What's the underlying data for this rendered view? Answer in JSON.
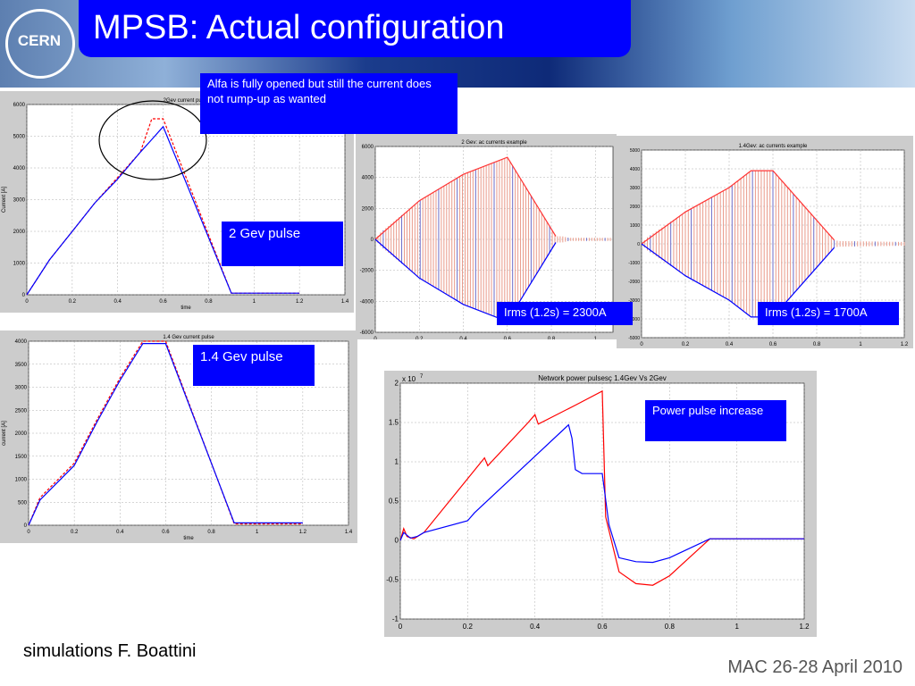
{
  "slide": {
    "title": "MPSB: Actual configuration",
    "logo": "CERN",
    "footer_left": "simulations F. Boattini",
    "footer_right": "MAC 26-28 April 2010"
  },
  "notes": {
    "alfa": "Alfa is fully opened but still the current does not rump-up as wanted",
    "gev2": "2 Gev pulse",
    "gev14": "1.4 Gev pulse",
    "irms2": "Irms (1.2s) = 2300A",
    "irms14": "Irms (1.2s) = 1700A",
    "power": "Power pulse increase"
  },
  "chart_data": [
    {
      "id": "chart1",
      "type": "line",
      "title": "2Gev current pulse",
      "xlabel": "time",
      "ylabel": "Current [A]",
      "xlim": [
        0,
        1.4
      ],
      "ylim": [
        0,
        6000
      ],
      "xticks": [
        "0",
        "0.2",
        "0.4",
        "0.6",
        "0.8",
        "1",
        "1.2",
        "1.4"
      ],
      "yticks": [
        "0",
        "1000",
        "2000",
        "3000",
        "4000",
        "5000",
        "6000"
      ],
      "grid": true,
      "series": [
        {
          "color": "#ff0000",
          "dash": "3,2",
          "x": [
            0,
            0.05,
            0.1,
            0.2,
            0.3,
            0.4,
            0.5,
            0.55,
            0.6,
            0.9,
            1.2
          ],
          "y": [
            0,
            550,
            1100,
            2000,
            2900,
            3700,
            4500,
            5550,
            5550,
            50,
            50
          ]
        },
        {
          "color": "#0000ff",
          "dash": "",
          "x": [
            0,
            0.05,
            0.1,
            0.2,
            0.3,
            0.4,
            0.5,
            0.55,
            0.6,
            0.9,
            1.2
          ],
          "y": [
            0,
            550,
            1100,
            2000,
            2900,
            3650,
            4500,
            4900,
            5300,
            50,
            50
          ]
        }
      ]
    },
    {
      "id": "chart2",
      "type": "line",
      "title": "1.4 Gev current pulse",
      "xlabel": "time",
      "ylabel": "current [A]",
      "xlim": [
        0,
        1.4
      ],
      "ylim": [
        0,
        4000
      ],
      "xticks": [
        "0",
        "0.2",
        "0.4",
        "0.6",
        "0.8",
        "1",
        "1.2",
        "1.4"
      ],
      "yticks": [
        "0",
        "500",
        "1000",
        "1500",
        "2000",
        "2500",
        "3000",
        "3500",
        "4000"
      ],
      "grid": true,
      "series": [
        {
          "color": "#ff0000",
          "dash": "3,2",
          "x": [
            0,
            0.05,
            0.2,
            0.3,
            0.4,
            0.5,
            0.6,
            0.9,
            1.2
          ],
          "y": [
            0,
            600,
            1350,
            2300,
            3200,
            4000,
            4000,
            30,
            30
          ]
        },
        {
          "color": "#0000ff",
          "dash": "",
          "x": [
            0,
            0.05,
            0.2,
            0.3,
            0.4,
            0.5,
            0.6,
            0.9,
            1.2
          ],
          "y": [
            0,
            550,
            1300,
            2250,
            3150,
            3950,
            3950,
            50,
            50
          ]
        }
      ]
    },
    {
      "id": "chart3",
      "type": "line",
      "title": "2 Gev: ac currents example",
      "xlim": [
        0,
        1.08
      ],
      "ylim": [
        -6000,
        6000
      ],
      "xticks": [
        "0",
        "0.2",
        "0.4",
        "0.6",
        "0.8",
        "1"
      ],
      "yticks": [
        "-6000",
        "-4000",
        "-2000",
        "0",
        "2000",
        "4000",
        "6000"
      ],
      "grid": true,
      "envelope": {
        "x": [
          0,
          0.02,
          0.2,
          0.4,
          0.6,
          0.82,
          0.85,
          0.88,
          1.08
        ],
        "amp": [
          0,
          400,
          2500,
          4200,
          5300,
          200,
          200,
          100,
          100
        ]
      },
      "series": [
        {
          "color": "#ff3333",
          "dash": "",
          "x": [
            0,
            0.2,
            0.4,
            0.6,
            0.82
          ],
          "y": [
            0,
            2500,
            4200,
            5300,
            200
          ]
        },
        {
          "color": "#0000ff",
          "dash": "",
          "x": [
            0,
            0.2,
            0.4,
            0.6,
            0.82
          ],
          "y": [
            0,
            -2500,
            -4200,
            -5300,
            -200
          ]
        }
      ]
    },
    {
      "id": "chart4",
      "type": "line",
      "title": "1.4Gev: ac currents example",
      "xlim": [
        0,
        1.2
      ],
      "ylim": [
        -5000,
        5000
      ],
      "xticks": [
        "0",
        "0.2",
        "0.4",
        "0.6",
        "0.8",
        "1",
        "1.2"
      ],
      "yticks": [
        "-5000",
        "-4000",
        "-3000",
        "-2000",
        "-1000",
        "0",
        "1000",
        "2000",
        "3000",
        "4000",
        "5000"
      ],
      "grid": true,
      "envelope": {
        "x": [
          0,
          0.02,
          0.2,
          0.4,
          0.5,
          0.6,
          0.88,
          0.9,
          1.2
        ],
        "amp": [
          0,
          300,
          1700,
          3000,
          3900,
          3900,
          200,
          150,
          100
        ]
      },
      "series": [
        {
          "color": "#ff3333",
          "dash": "",
          "x": [
            0,
            0.2,
            0.4,
            0.5,
            0.6,
            0.88
          ],
          "y": [
            0,
            1700,
            3000,
            3900,
            3900,
            200
          ]
        },
        {
          "color": "#0000ff",
          "dash": "",
          "x": [
            0,
            0.2,
            0.4,
            0.5,
            0.6,
            0.88
          ],
          "y": [
            0,
            -1700,
            -3000,
            -3900,
            -3900,
            -200
          ]
        }
      ]
    },
    {
      "id": "chart5",
      "type": "line",
      "title": "Network power pulsesç 1.4Gev Vs 2Gev",
      "exponent": "x 10",
      "exponent_power": "7",
      "xlim": [
        0,
        1.2
      ],
      "ylim": [
        -1,
        2
      ],
      "xticks": [
        "0",
        "0.2",
        "0.4",
        "0.6",
        "0.8",
        "1",
        "1.2"
      ],
      "yticks": [
        "-1",
        "-0.5",
        "0",
        "0.5",
        "1",
        "1.5",
        "2"
      ],
      "grid": true,
      "series": [
        {
          "color": "#ff0000",
          "dash": "",
          "x": [
            0,
            0.01,
            0.02,
            0.04,
            0.07,
            0.25,
            0.26,
            0.38,
            0.4,
            0.41,
            0.52,
            0.6,
            0.61,
            0.65,
            0.7,
            0.75,
            0.8,
            0.92,
            1.2
          ],
          "y": [
            0,
            0.15,
            0.05,
            0.02,
            0.1,
            1.05,
            0.95,
            1.5,
            1.6,
            1.48,
            1.72,
            1.9,
            0.3,
            -0.4,
            -0.55,
            -0.57,
            -0.45,
            0.02,
            0.02
          ]
        },
        {
          "color": "#0000ff",
          "dash": "",
          "x": [
            0,
            0.01,
            0.03,
            0.05,
            0.07,
            0.2,
            0.21,
            0.22,
            0.5,
            0.51,
            0.52,
            0.54,
            0.6,
            0.62,
            0.65,
            0.7,
            0.75,
            0.8,
            0.92,
            1.2
          ],
          "y": [
            0,
            0.1,
            0.03,
            0.05,
            0.1,
            0.25,
            0.3,
            0.35,
            1.47,
            1.3,
            0.9,
            0.85,
            0.85,
            0.2,
            -0.22,
            -0.27,
            -0.28,
            -0.22,
            0.02,
            0.02
          ]
        }
      ]
    }
  ]
}
